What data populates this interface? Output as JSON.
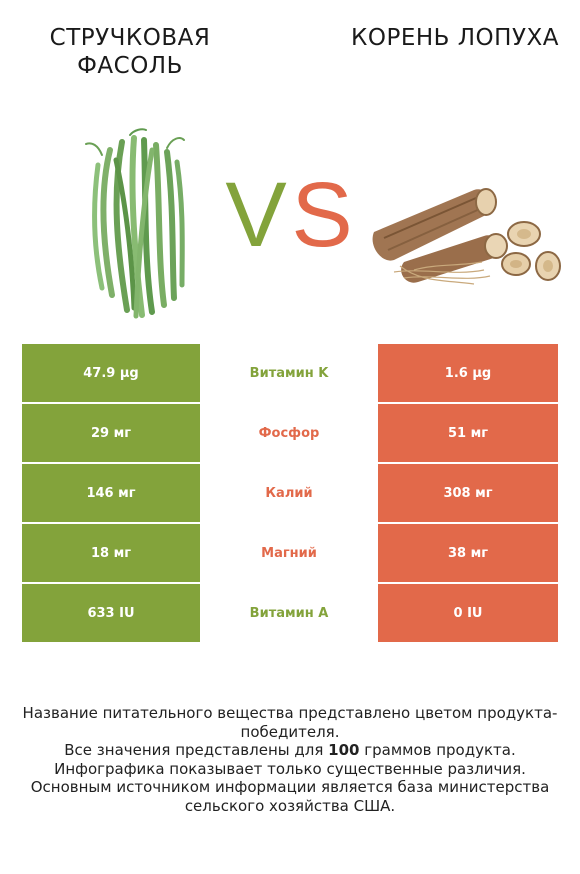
{
  "header": {
    "left_title": "Стручковая фасоль",
    "right_title": "Корень лопуха",
    "vs_left": "V",
    "vs_right": "S"
  },
  "colors": {
    "green": "#83a33b",
    "orange": "#e2694a",
    "divider": "#ffffff"
  },
  "icons": {
    "left_food": "green-beans-image",
    "right_food": "burdock-root-image"
  },
  "rows": [
    {
      "left": "47.9 µg",
      "label": "Витамин K",
      "right": "1.6 µg",
      "winner": "left"
    },
    {
      "left": "29 мг",
      "label": "Фосфор",
      "right": "51 мг",
      "winner": "right"
    },
    {
      "left": "146 мг",
      "label": "Калий",
      "right": "308 мг",
      "winner": "right"
    },
    {
      "left": "18 мг",
      "label": "Магний",
      "right": "38 мг",
      "winner": "right"
    },
    {
      "left": "633 IU",
      "label": "Витамин A",
      "right": "0 IU",
      "winner": "left"
    }
  ],
  "footer": {
    "line1": "Название питательного вещества представлено цветом продукта-победителя.",
    "line2_before": "Все значения представлены для ",
    "line2_bold": "100",
    "line2_after": " граммов продукта.",
    "line3": "Инфографика показывает только существенные различия.",
    "line4": "Основным источником информации является база министерства сельского хозяйства США."
  }
}
